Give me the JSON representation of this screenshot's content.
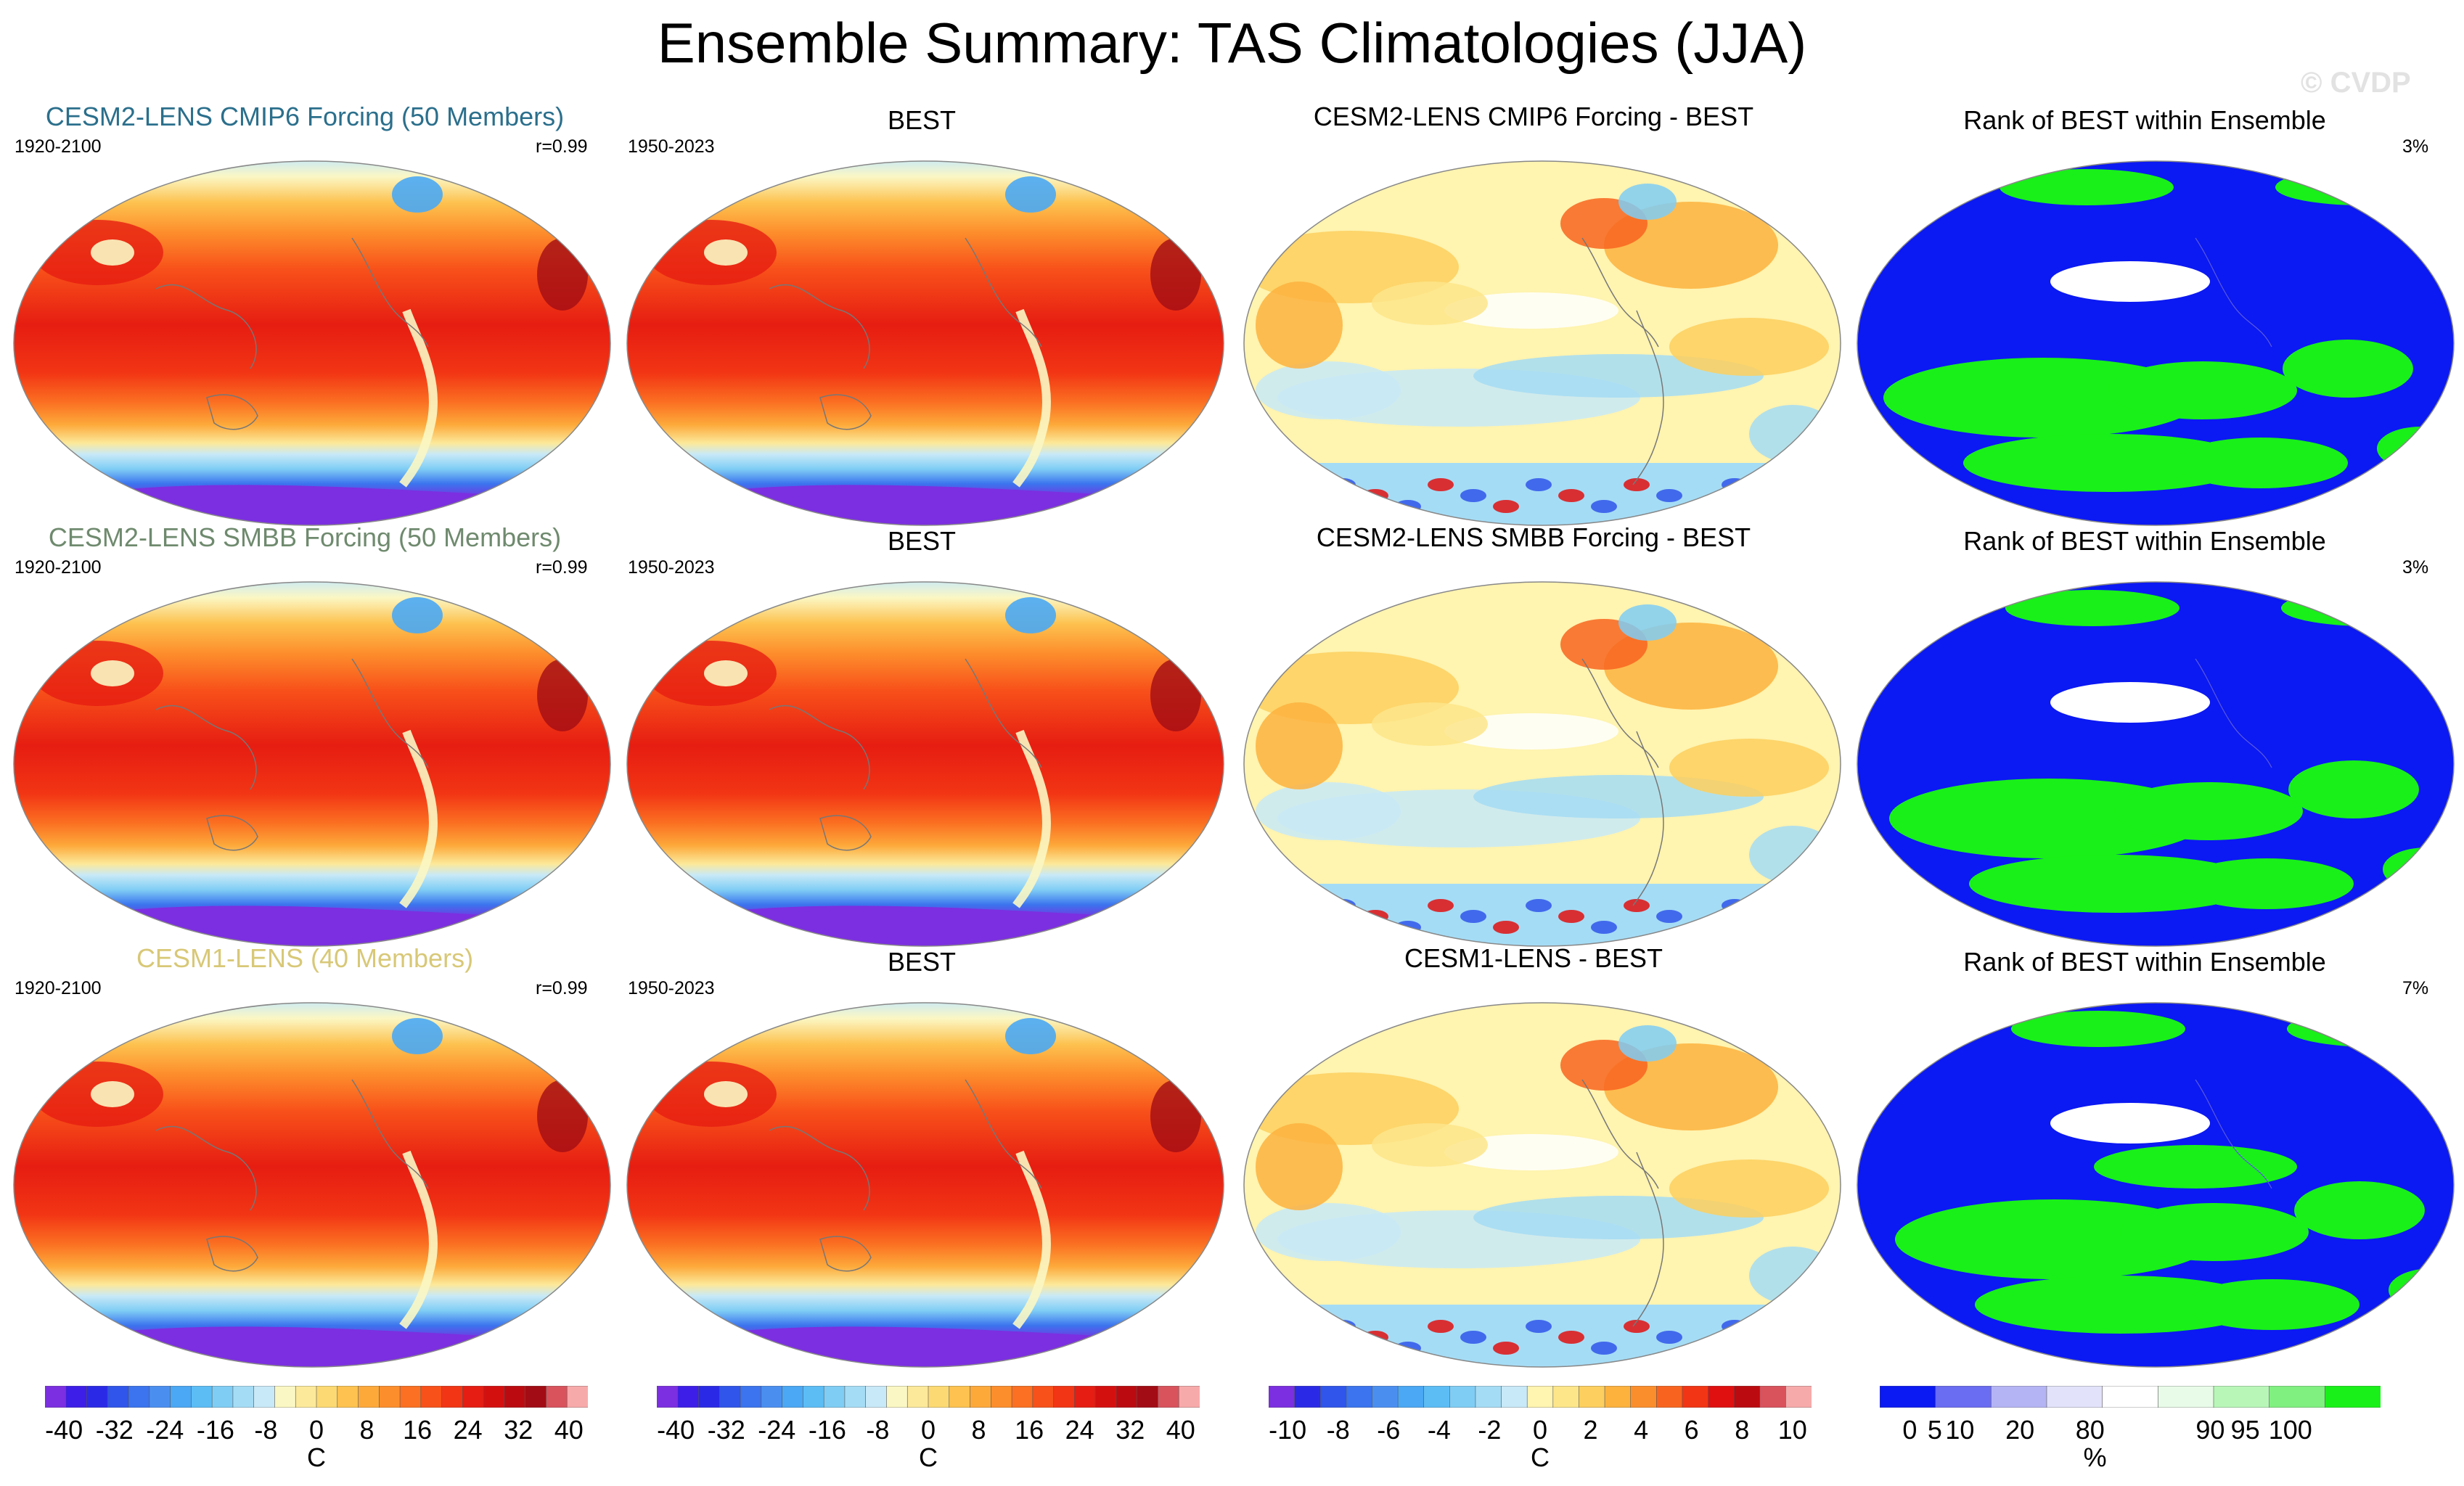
{
  "title": "Ensemble Summary: TAS Climatologies (JJA)",
  "watermark": "© CVDP",
  "rows": [
    {
      "model_title": "CESM2-LENS CMIP6 Forcing (50 Members)",
      "model_title_color": "#2b6f8c",
      "model_years": "1920-2100",
      "corr": "r=0.99",
      "obs_title": "BEST",
      "obs_years": "1950-2023",
      "diff_title": "CESM2-LENS CMIP6 Forcing - BEST",
      "rank_title": "Rank of BEST within Ensemble",
      "rank_pct": "3%"
    },
    {
      "model_title": "CESM2-LENS SMBB Forcing (50 Members)",
      "model_title_color": "#6f8a6e",
      "model_years": "1920-2100",
      "corr": "r=0.99",
      "obs_title": "BEST",
      "obs_years": "1950-2023",
      "diff_title": "CESM2-LENS SMBB Forcing - BEST",
      "rank_title": "Rank of BEST within Ensemble",
      "rank_pct": "3%"
    },
    {
      "model_title": "CESM1-LENS (40 Members)",
      "model_title_color": "#d8c877",
      "model_years": "1920-2100",
      "corr": "r=0.99",
      "obs_title": "BEST",
      "obs_years": "1950-2023",
      "diff_title": "CESM1-LENS - BEST",
      "rank_title": "Rank of BEST within Ensemble",
      "rank_pct": "7%"
    }
  ],
  "colorbars": [
    {
      "unit": "C",
      "colors": [
        "#7b2fe0",
        "#3d1ee8",
        "#2a2ae6",
        "#2f55ea",
        "#3b74ee",
        "#4a8ff0",
        "#4aa8f4",
        "#5cbdf5",
        "#7fcdf5",
        "#a5dcf5",
        "#c8e9f7",
        "#fbf7c4",
        "#fce99a",
        "#fcd972",
        "#fdc24f",
        "#fda93a",
        "#fd8e2c",
        "#fb7022",
        "#f8511a",
        "#f23514",
        "#e61d12",
        "#d4100f",
        "#bb0b10",
        "#a20c14",
        "#d9535c",
        "#f7aaaa"
      ],
      "labels": [
        "-40",
        "-32",
        "-24",
        "-16",
        "-8",
        "0",
        "8",
        "16",
        "24",
        "32",
        "40"
      ]
    },
    {
      "unit": "C",
      "colors": [
        "#7b2fe0",
        "#3d1ee8",
        "#2a2ae6",
        "#2f55ea",
        "#3b74ee",
        "#4a8ff0",
        "#4aa8f4",
        "#5cbdf5",
        "#7fcdf5",
        "#a5dcf5",
        "#c8e9f7",
        "#fbf7c4",
        "#fce99a",
        "#fcd972",
        "#fdc24f",
        "#fda93a",
        "#fd8e2c",
        "#fb7022",
        "#f8511a",
        "#f23514",
        "#e61d12",
        "#d4100f",
        "#bb0b10",
        "#a20c14",
        "#d9535c",
        "#f7aaaa"
      ],
      "labels": [
        "-40",
        "-32",
        "-24",
        "-16",
        "-8",
        "0",
        "8",
        "16",
        "24",
        "32",
        "40"
      ]
    },
    {
      "unit": "C",
      "colors": [
        "#7b2fe0",
        "#2a2ae6",
        "#2f55ea",
        "#3b74ee",
        "#4a8ff0",
        "#4aa8f4",
        "#5cbdf5",
        "#7fcdf5",
        "#a5dcf5",
        "#c8e9f7",
        "#fff4b0",
        "#fde58a",
        "#fdcf5e",
        "#fdb23e",
        "#fb8e2c",
        "#f8641f",
        "#f23514",
        "#e01010",
        "#bb0b10",
        "#d9535c",
        "#f7aaaa"
      ],
      "labels": [
        "-10",
        "-8",
        "-6",
        "-4",
        "-2",
        "0",
        "2",
        "4",
        "6",
        "8",
        "10"
      ]
    },
    {
      "unit": "%",
      "colors": [
        "#0b19f2",
        "#6a6cf2",
        "#b4b4f4",
        "#e2e2fa",
        "#ffffff",
        "#e8fbe8",
        "#b8f6b8",
        "#80f080",
        "#19f019"
      ],
      "labels": [
        "0",
        "5",
        "10",
        "20",
        "80",
        "90",
        "95",
        "100"
      ]
    }
  ]
}
